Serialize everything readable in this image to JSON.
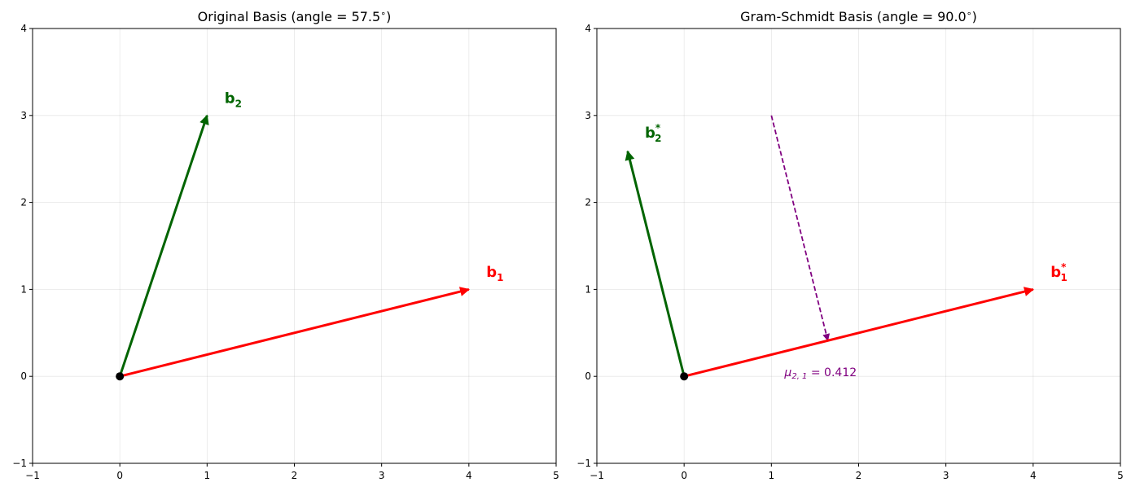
{
  "chart_data": [
    {
      "type": "vector",
      "title": "Original Basis (angle = 57.5$^\\circ$)",
      "title_text": "Original Basis (angle = 57.5",
      "title_suffix": ")",
      "xlim": [
        -1,
        5
      ],
      "ylim": [
        -1,
        4
      ],
      "xticks": [
        "−1",
        "0",
        "1",
        "2",
        "3",
        "4",
        "5"
      ],
      "yticks": [
        "−1",
        "0",
        "1",
        "2",
        "3",
        "4"
      ],
      "grid": true,
      "origin": [
        0,
        0
      ],
      "vectors": [
        {
          "name": "b1",
          "label_main": "b",
          "label_sub": "1",
          "label_sup": "",
          "start": [
            0,
            0
          ],
          "end": [
            4,
            1
          ],
          "color": "#ff0000",
          "label_pos": [
            4.2,
            1.2
          ]
        },
        {
          "name": "b2",
          "label_main": "b",
          "label_sub": "2",
          "label_sup": "",
          "start": [
            0,
            0
          ],
          "end": [
            1,
            3
          ],
          "color": "#006400",
          "label_pos": [
            1.2,
            3.2
          ]
        }
      ]
    },
    {
      "type": "vector",
      "title": "Gram-Schmidt Basis (angle = 90.0$^\\circ$)",
      "title_text": "Gram-Schmidt Basis (angle = 90.0",
      "title_suffix": ")",
      "xlim": [
        -1,
        5
      ],
      "ylim": [
        -1,
        4
      ],
      "xticks": [
        "−1",
        "0",
        "1",
        "2",
        "3",
        "4",
        "5"
      ],
      "yticks": [
        "−1",
        "0",
        "1",
        "2",
        "3",
        "4"
      ],
      "grid": true,
      "origin": [
        0,
        0
      ],
      "vectors": [
        {
          "name": "b1*",
          "label_main": "b",
          "label_sub": "1",
          "label_sup": "*",
          "start": [
            0,
            0
          ],
          "end": [
            4,
            1
          ],
          "color": "#ff0000",
          "label_pos": [
            4.2,
            1.2
          ]
        },
        {
          "name": "b2*",
          "label_main": "b",
          "label_sub": "2",
          "label_sup": "*",
          "start": [
            0,
            0
          ],
          "end": [
            -0.647,
            2.588
          ],
          "color": "#006400",
          "label_pos": [
            -0.45,
            2.8
          ]
        }
      ],
      "projection": {
        "start": [
          1,
          3
        ],
        "end": [
          1.647,
          0.412
        ],
        "color": "#800080",
        "style": "dashed"
      },
      "annotation": {
        "text_main": "μ",
        "text_sub": "2, 1",
        "text_rest": " = 0.412",
        "pos": [
          1.15,
          0.0
        ],
        "color": "#800080"
      }
    }
  ]
}
